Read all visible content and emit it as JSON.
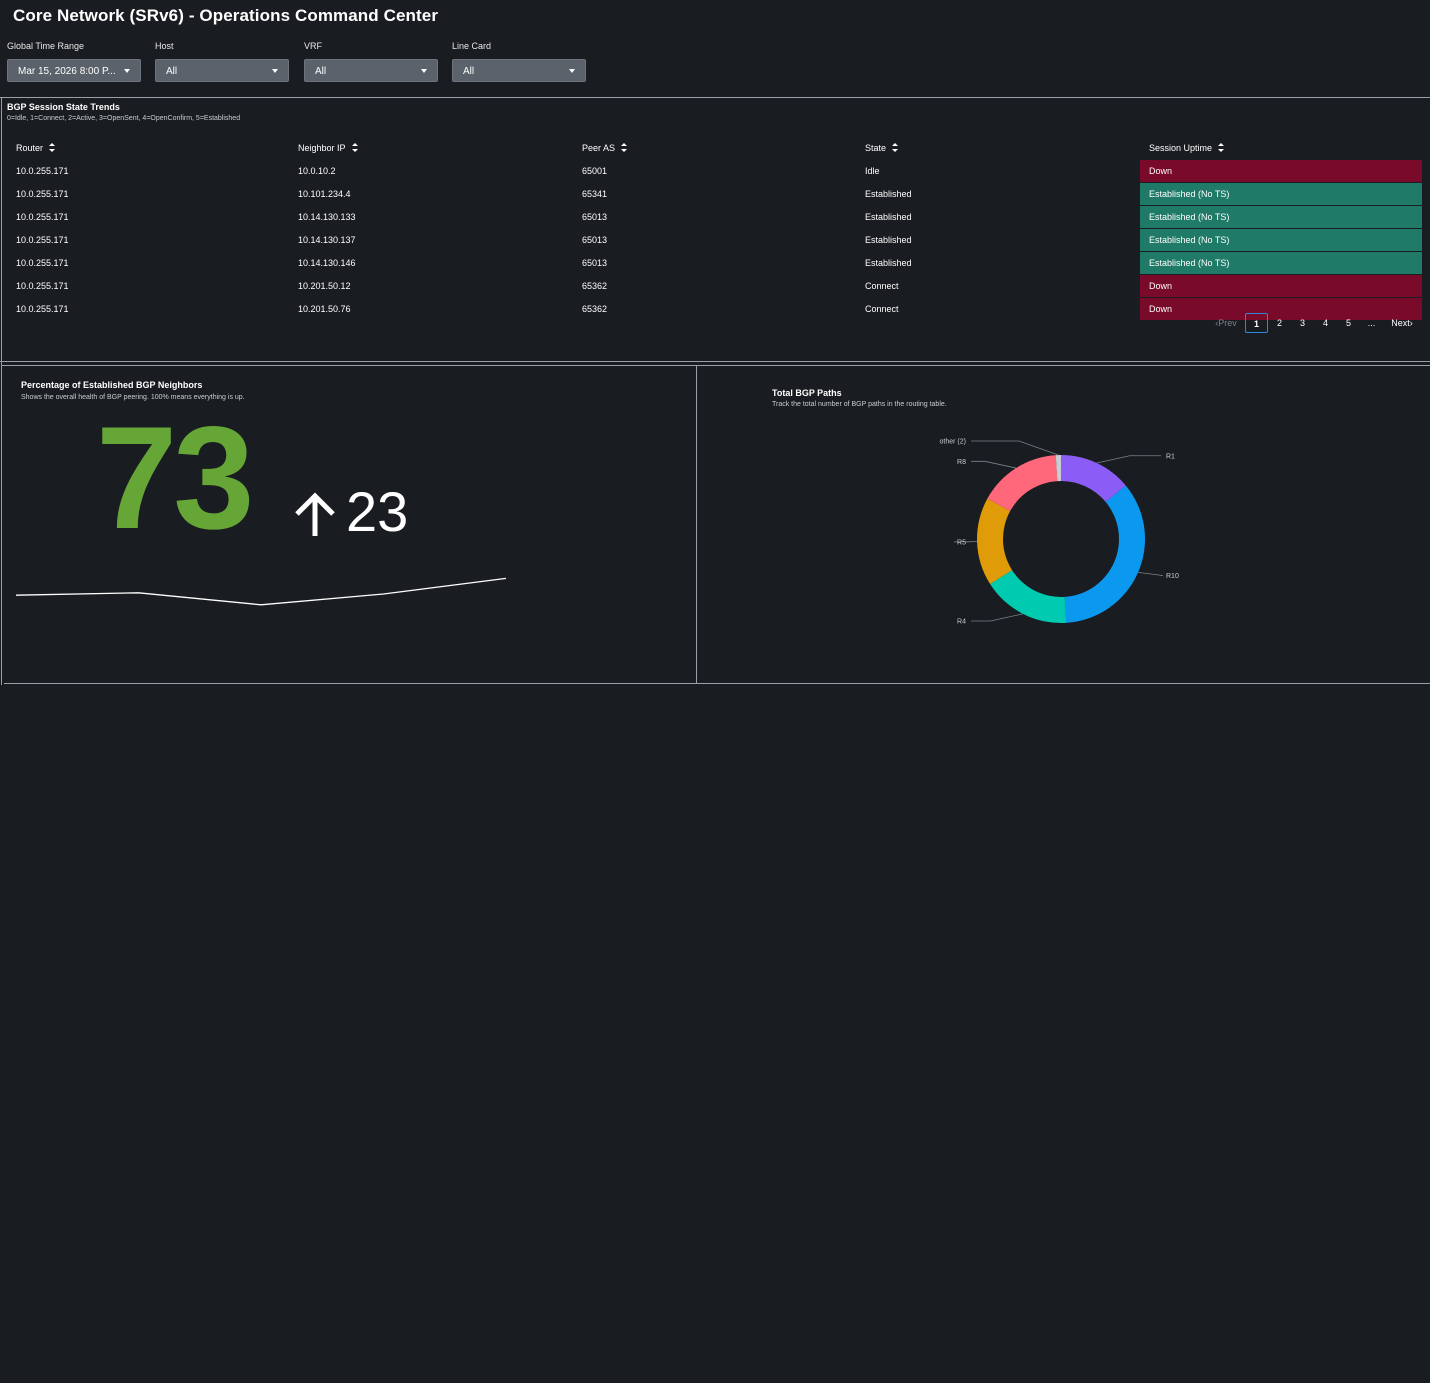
{
  "header": {
    "title": "Core Network (SRv6) - Operations Command Center"
  },
  "filters": [
    {
      "label": "Global Time Range",
      "value": "Mar 15, 2026 8:00 P..."
    },
    {
      "label": "Host",
      "value": "All"
    },
    {
      "label": "VRF",
      "value": "All"
    },
    {
      "label": "Line Card",
      "value": "All"
    }
  ],
  "bgp_table": {
    "title": "BGP Session State Trends",
    "subtitle": "0=Idle, 1=Connect, 2=Active, 3=OpenSent, 4=OpenConfirm, 5=Established",
    "columns": [
      "Router",
      "Neighbor IP",
      "Peer AS",
      "State",
      "Session Uptime"
    ],
    "rows": [
      {
        "router": "10.0.255.171",
        "neighbor": "10.0.10.2",
        "peer_as": "65001",
        "state": "Idle",
        "uptime": "Down"
      },
      {
        "router": "10.0.255.171",
        "neighbor": "10.101.234.4",
        "peer_as": "65341",
        "state": "Established",
        "uptime": "Established (No TS)"
      },
      {
        "router": "10.0.255.171",
        "neighbor": "10.14.130.133",
        "peer_as": "65013",
        "state": "Established",
        "uptime": "Established (No TS)"
      },
      {
        "router": "10.0.255.171",
        "neighbor": "10.14.130.137",
        "peer_as": "65013",
        "state": "Established",
        "uptime": "Established (No TS)"
      },
      {
        "router": "10.0.255.171",
        "neighbor": "10.14.130.146",
        "peer_as": "65013",
        "state": "Established",
        "uptime": "Established (No TS)"
      },
      {
        "router": "10.0.255.171",
        "neighbor": "10.201.50.12",
        "peer_as": "65362",
        "state": "Connect",
        "uptime": "Down"
      },
      {
        "router": "10.0.255.171",
        "neighbor": "10.201.50.76",
        "peer_as": "65362",
        "state": "Connect",
        "uptime": "Down"
      }
    ],
    "status_colors": {
      "down": "#7a0a2a",
      "established": "#1f7a68"
    },
    "pagination": {
      "prev": "Prev",
      "pages": [
        "1",
        "2",
        "3",
        "4",
        "5"
      ],
      "ellipsis": "...",
      "next": "Next",
      "current": "1"
    }
  },
  "established_panel": {
    "title": "Percentage of Established BGP Neighbors",
    "subtitle": "Shows the overall health of BGP peering. 100% means everything is up.",
    "value": "73",
    "delta": "23",
    "value_color": "#65a637",
    "trend_icon": "arrow-up-icon"
  },
  "paths_panel": {
    "title": "Total BGP Paths",
    "subtitle": "Track the total number of BGP paths in the routing table."
  },
  "chart_data": {
    "type": "pie",
    "donut": true,
    "categories": [
      "R1",
      "R10",
      "R4",
      "R5",
      "R8",
      "other (2)"
    ],
    "values": [
      14,
      35,
      17,
      17,
      16,
      1
    ],
    "colors": [
      "#8b5cf6",
      "#0b99f0",
      "#00cbb0",
      "#e09b08",
      "#ff677b",
      "#c9cdd2"
    ],
    "sparkline": {
      "type": "line",
      "values": [
        58,
        62,
        42,
        60,
        86
      ]
    }
  }
}
